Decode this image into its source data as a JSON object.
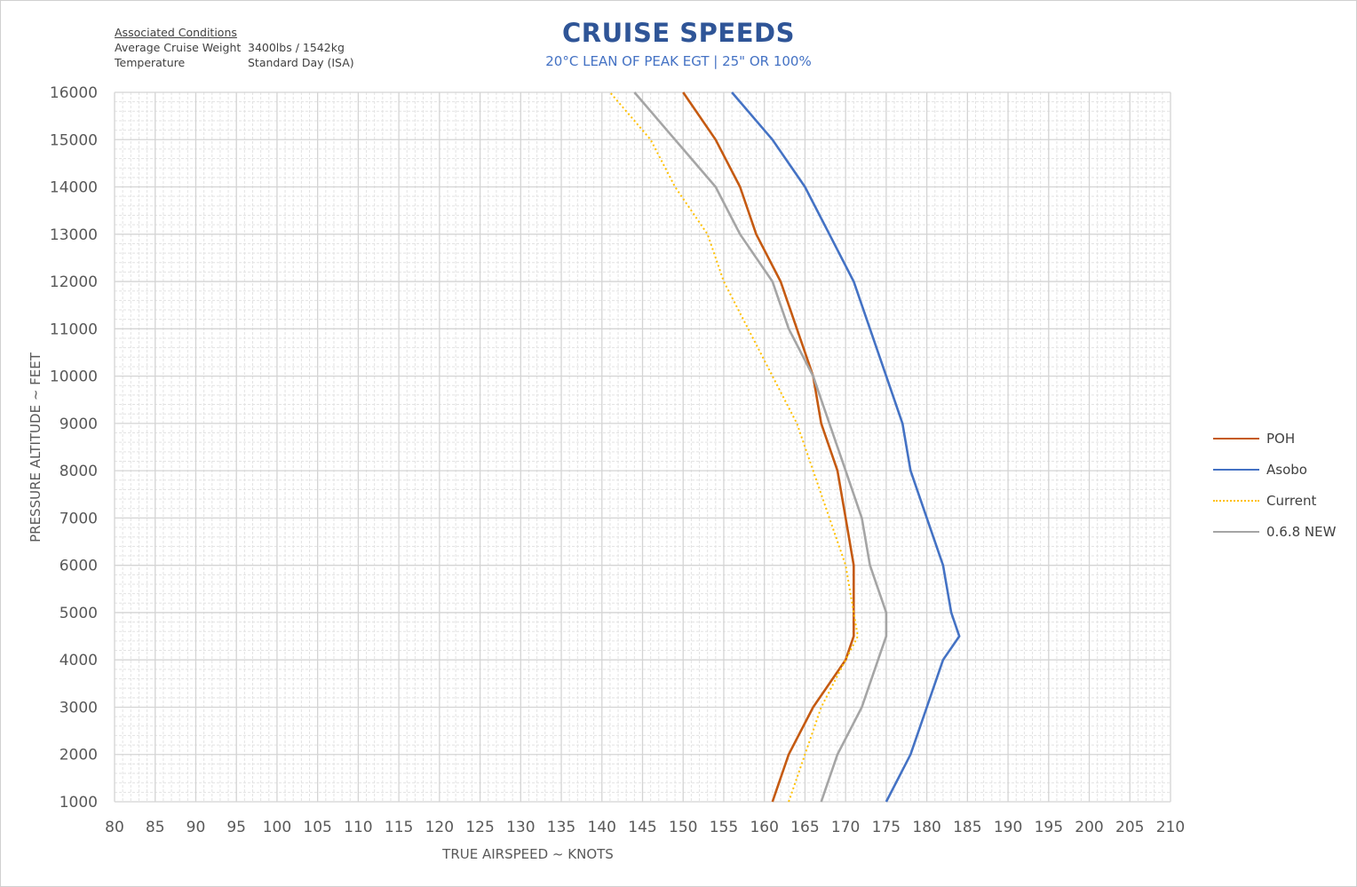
{
  "conditions": {
    "heading": "Associated Conditions",
    "rows": [
      {
        "label": "Average Cruise Weight",
        "value": "3400lbs / 1542kg"
      },
      {
        "label": "Temperature",
        "value": "Standard Day (ISA)"
      }
    ]
  },
  "chart_data": {
    "type": "line",
    "title": "CRUISE SPEEDS",
    "subtitle": "20°C LEAN OF PEAK EGT | 25\" OR 100%",
    "xlabel": "TRUE AIRSPEED ~ KNOTS",
    "ylabel": "PRESSURE ALTITUDE ~ FEET",
    "xlim": [
      80,
      210
    ],
    "ylim": [
      1000,
      16000
    ],
    "x_ticks": [
      "80",
      "85",
      "90",
      "95",
      "100",
      "105",
      "110",
      "115",
      "120",
      "125",
      "130",
      "135",
      "140",
      "145",
      "150",
      "155",
      "160",
      "165",
      "170",
      "175",
      "180",
      "185",
      "190",
      "195",
      "200",
      "205",
      "210"
    ],
    "y_ticks": [
      "1000",
      "2000",
      "3000",
      "4000",
      "5000",
      "6000",
      "7000",
      "8000",
      "9000",
      "10000",
      "11000",
      "12000",
      "13000",
      "14000",
      "15000",
      "16000"
    ],
    "grid": true,
    "legend_position": "right",
    "series": [
      {
        "name": "POH",
        "color": "#c55a11",
        "dash": "solid",
        "points": [
          [
            161,
            1000
          ],
          [
            163,
            2000
          ],
          [
            166,
            3000
          ],
          [
            170,
            4000
          ],
          [
            171,
            4500
          ],
          [
            171,
            5000
          ],
          [
            171,
            6000
          ],
          [
            170,
            7000
          ],
          [
            169,
            8000
          ],
          [
            167,
            9000
          ],
          [
            166,
            10000
          ],
          [
            164,
            11000
          ],
          [
            162,
            12000
          ],
          [
            159,
            13000
          ],
          [
            157,
            14000
          ],
          [
            154,
            15000
          ],
          [
            150,
            16000
          ]
        ]
      },
      {
        "name": "Asobo",
        "color": "#4472c4",
        "dash": "solid",
        "points": [
          [
            175,
            1000
          ],
          [
            178,
            2000
          ],
          [
            180,
            3000
          ],
          [
            182,
            4000
          ],
          [
            184,
            4500
          ],
          [
            183,
            5000
          ],
          [
            182,
            6000
          ],
          [
            180,
            7000
          ],
          [
            178,
            8000
          ],
          [
            177,
            9000
          ],
          [
            175,
            10000
          ],
          [
            173,
            11000
          ],
          [
            171,
            12000
          ],
          [
            168,
            13000
          ],
          [
            165,
            14000
          ],
          [
            161,
            15000
          ],
          [
            156,
            16000
          ]
        ]
      },
      {
        "name": "Current",
        "color": "#ffc000",
        "dash": "dotted",
        "points": [
          [
            163,
            1000
          ],
          [
            165,
            2000
          ],
          [
            167,
            3000
          ],
          [
            170,
            4000
          ],
          [
            171.5,
            4500
          ],
          [
            171,
            5000
          ],
          [
            170,
            6000
          ],
          [
            168,
            7000
          ],
          [
            166,
            8000
          ],
          [
            164,
            9000
          ],
          [
            161,
            10000
          ],
          [
            158,
            11000
          ],
          [
            155,
            12000
          ],
          [
            153,
            13000
          ],
          [
            149,
            14000
          ],
          [
            146,
            15000
          ],
          [
            141,
            16000
          ]
        ]
      },
      {
        "name": "0.6.8 NEW",
        "color": "#a5a5a5",
        "dash": "solid",
        "points": [
          [
            167,
            1000
          ],
          [
            169,
            2000
          ],
          [
            172,
            3000
          ],
          [
            174,
            4000
          ],
          [
            175,
            4500
          ],
          [
            175,
            5000
          ],
          [
            173,
            6000
          ],
          [
            172,
            7000
          ],
          [
            170,
            8000
          ],
          [
            168,
            9000
          ],
          [
            166,
            10000
          ],
          [
            163,
            11000
          ],
          [
            161,
            12000
          ],
          [
            157,
            13000
          ],
          [
            154,
            14000
          ],
          [
            149,
            15000
          ],
          [
            144,
            16000
          ]
        ]
      }
    ]
  }
}
